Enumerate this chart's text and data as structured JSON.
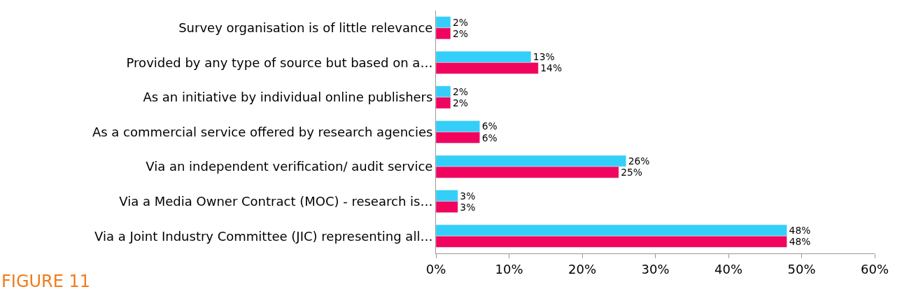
{
  "chart_data": {
    "type": "bar",
    "orientation": "horizontal",
    "title": "FIGURE 11",
    "categories": [
      "Survey organisation is of little relevance",
      "Provided by any type of source but based on a…",
      "As an initiative by individual online publishers",
      "As a commercial service offered by research agencies",
      "Via an independent verification/ audit service",
      "Via a Media Owner Contract (MOC) - research is…",
      "Via a Joint Industry Committee (JIC) representing all…"
    ],
    "series": [
      {
        "color": "#33cff8",
        "values": [
          2,
          13,
          2,
          6,
          26,
          3,
          48
        ],
        "value_labels": [
          "2%",
          "13%",
          "2%",
          "6%",
          "26%",
          "3%",
          "48%"
        ]
      },
      {
        "color": "#f0045e",
        "values": [
          2,
          14,
          2,
          6,
          25,
          3,
          48
        ],
        "value_labels": [
          "2%",
          "14%",
          "2%",
          "6%",
          "25%",
          "3%",
          "48%"
        ]
      }
    ],
    "xlim": [
      0,
      60
    ],
    "xticks": [
      {
        "value": 0,
        "label": "0%"
      },
      {
        "value": 10,
        "label": "10%"
      },
      {
        "value": 20,
        "label": "20%"
      },
      {
        "value": 30,
        "label": "30%"
      },
      {
        "value": 40,
        "label": "40%"
      },
      {
        "value": 50,
        "label": "50%"
      },
      {
        "value": 60,
        "label": "60%"
      }
    ]
  }
}
